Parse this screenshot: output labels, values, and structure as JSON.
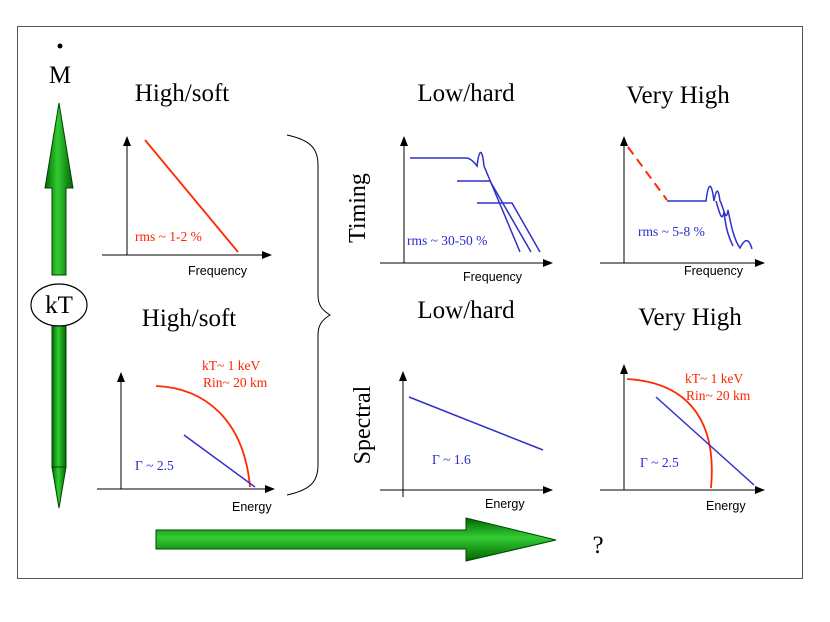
{
  "left_axis": {
    "label": "M",
    "middle_label": "kT"
  },
  "bottom_arrow": {
    "question": "?"
  },
  "columns": {
    "high_soft_timing_title": "High/soft",
    "high_soft_spectral_title": "High/soft",
    "low_hard_timing_title": "Low/hard",
    "low_hard_spectral_title": "Low/hard",
    "very_high_timing_title": "Very High",
    "very_high_spectral_title": "Very High"
  },
  "rows": {
    "timing": "Timing",
    "spectral": "Spectral"
  },
  "panels": {
    "hs_timing": {
      "annotation": "rms ~ 1-2 %",
      "xlabel": "Frequency"
    },
    "lh_timing": {
      "annotation": "rms ~ 30-50 %",
      "xlabel": "Frequency"
    },
    "vh_timing": {
      "annotation": "rms ~ 5-8 %",
      "xlabel": "Frequency"
    },
    "hs_spectral": {
      "kt": "kT~ 1 keV",
      "rin": "Rin~ 20 km",
      "gamma": "Γ ~ 2.5",
      "xlabel": "Energy"
    },
    "lh_spectral": {
      "gamma": "Γ ~ 1.6",
      "xlabel": "Energy"
    },
    "vh_spectral": {
      "kt": "kT~ 1 keV",
      "rin": "Rin~ 20 km",
      "gamma": "Γ ~ 2.5",
      "xlabel": "Energy"
    }
  },
  "colors": {
    "arrow_green": "#008800",
    "red": "#ff2200",
    "blue": "#3030c8"
  }
}
